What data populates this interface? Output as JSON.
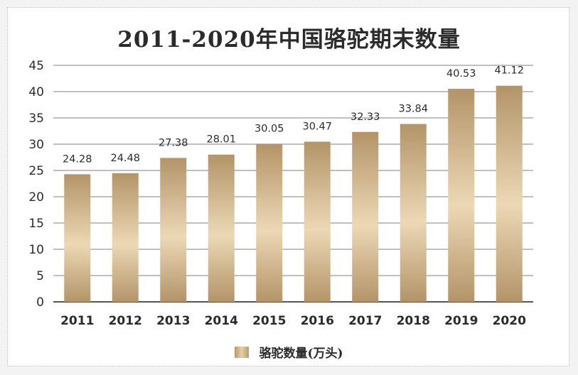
{
  "chart_data": {
    "type": "bar",
    "title": "2011-2020年中国骆驼期末数量",
    "categories": [
      "2011",
      "2012",
      "2013",
      "2014",
      "2015",
      "2016",
      "2017",
      "2018",
      "2019",
      "2020"
    ],
    "series": [
      {
        "name": "骆驼数量(万头)",
        "values": [
          24.28,
          24.48,
          27.38,
          28.01,
          30.05,
          30.47,
          32.33,
          33.84,
          40.53,
          41.12
        ]
      }
    ],
    "data_labels": [
      "24.28",
      "24.48",
      "27.38",
      "28.01",
      "30.05",
      "30.47",
      "32.33",
      "33.84",
      "40.53",
      "41.12"
    ],
    "ylim": [
      0,
      45
    ],
    "yticks": [
      0,
      5,
      10,
      15,
      20,
      25,
      30,
      35,
      40,
      45
    ],
    "grid": true,
    "legend_position": "bottom",
    "colors": {
      "bar_dark": "#a98a5c",
      "bar_light": "#ecd8b6",
      "grid": "#9a9a9a",
      "text": "#2b2b2b"
    }
  }
}
